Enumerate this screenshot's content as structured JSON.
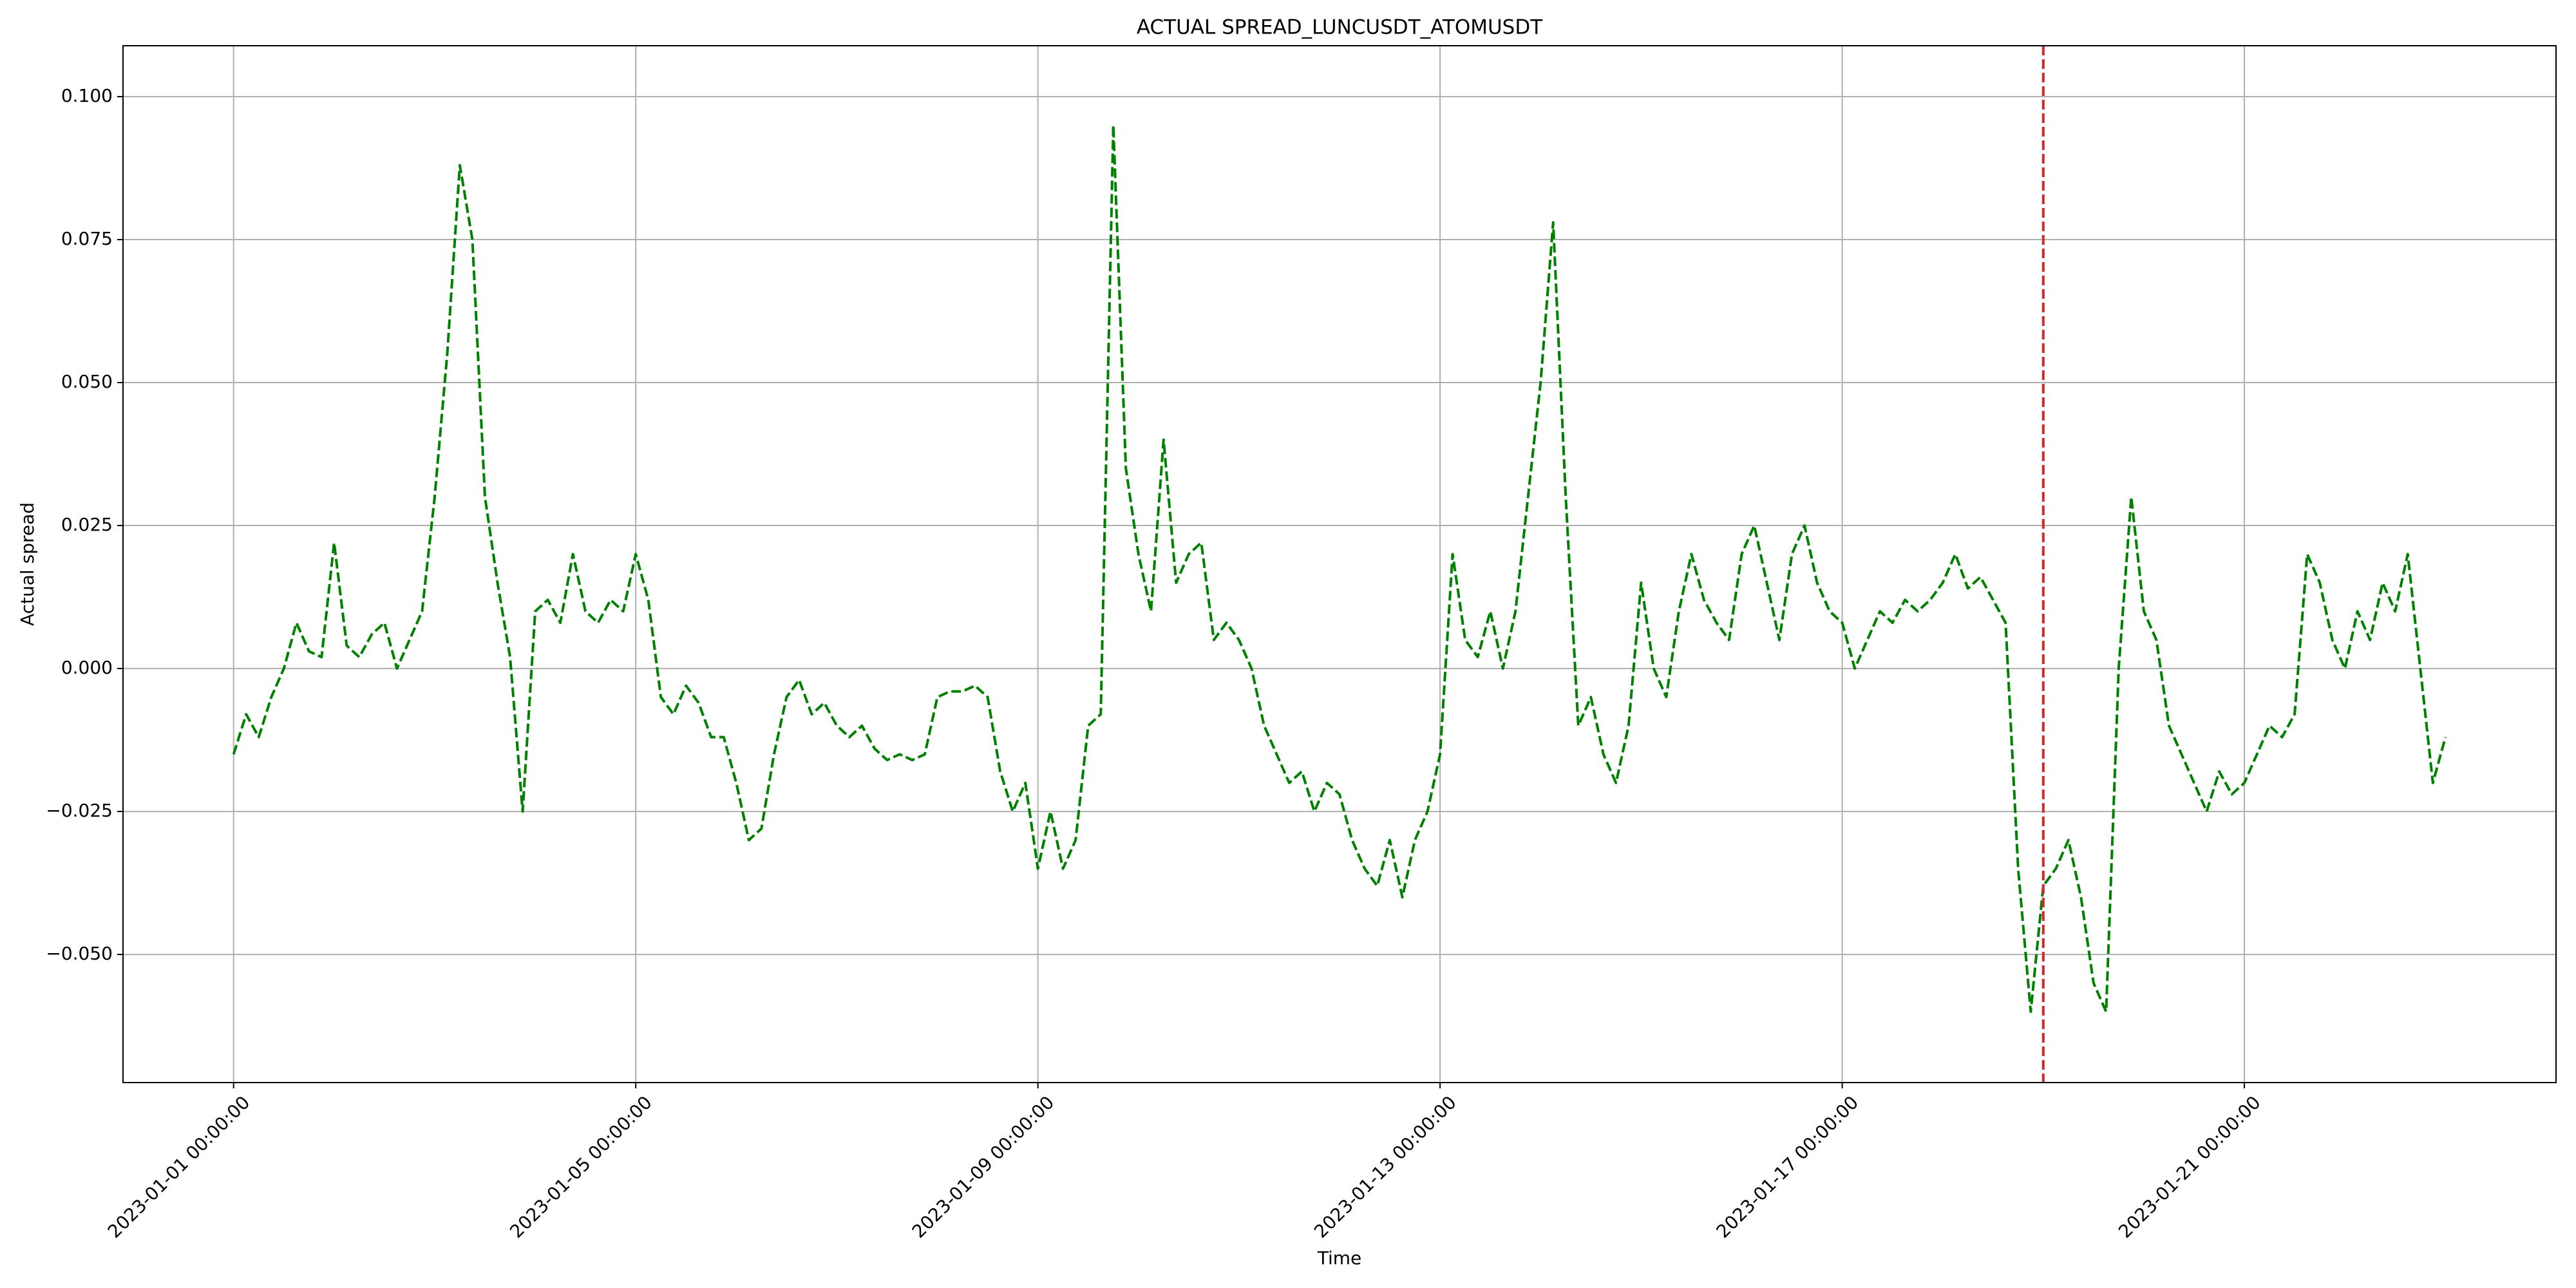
{
  "chart_data": {
    "type": "line",
    "title": "ACTUAL SPREAD_LUNCUSDT_ATOMUSDT",
    "x_label": "Time",
    "y_label": "Actual spread",
    "x": [
      "2023-01-01 00:00:00",
      "2023-01-01 03:00:00",
      "2023-01-01 06:00:00",
      "2023-01-01 09:00:00",
      "2023-01-01 12:00:00",
      "2023-01-01 15:00:00",
      "2023-01-01 18:00:00",
      "2023-01-01 21:00:00",
      "2023-01-02 00:00:00",
      "2023-01-02 03:00:00",
      "2023-01-02 06:00:00",
      "2023-01-02 09:00:00",
      "2023-01-02 12:00:00",
      "2023-01-02 15:00:00",
      "2023-01-02 18:00:00",
      "2023-01-02 21:00:00",
      "2023-01-03 00:00:00",
      "2023-01-03 03:00:00",
      "2023-01-03 06:00:00",
      "2023-01-03 09:00:00",
      "2023-01-03 12:00:00",
      "2023-01-03 15:00:00",
      "2023-01-03 18:00:00",
      "2023-01-03 21:00:00",
      "2023-01-04 00:00:00",
      "2023-01-04 03:00:00",
      "2023-01-04 06:00:00",
      "2023-01-04 09:00:00",
      "2023-01-04 12:00:00",
      "2023-01-04 15:00:00",
      "2023-01-04 18:00:00",
      "2023-01-04 21:00:00",
      "2023-01-05 00:00:00",
      "2023-01-05 03:00:00",
      "2023-01-05 06:00:00",
      "2023-01-05 09:00:00",
      "2023-01-05 12:00:00",
      "2023-01-05 15:00:00",
      "2023-01-05 18:00:00",
      "2023-01-05 21:00:00",
      "2023-01-06 00:00:00",
      "2023-01-06 03:00:00",
      "2023-01-06 06:00:00",
      "2023-01-06 09:00:00",
      "2023-01-06 12:00:00",
      "2023-01-06 15:00:00",
      "2023-01-06 18:00:00",
      "2023-01-06 21:00:00",
      "2023-01-07 00:00:00",
      "2023-01-07 03:00:00",
      "2023-01-07 06:00:00",
      "2023-01-07 09:00:00",
      "2023-01-07 12:00:00",
      "2023-01-07 15:00:00",
      "2023-01-07 18:00:00",
      "2023-01-07 21:00:00",
      "2023-01-08 00:00:00",
      "2023-01-08 03:00:00",
      "2023-01-08 06:00:00",
      "2023-01-08 09:00:00",
      "2023-01-08 12:00:00",
      "2023-01-08 15:00:00",
      "2023-01-08 18:00:00",
      "2023-01-08 21:00:00",
      "2023-01-09 00:00:00",
      "2023-01-09 03:00:00",
      "2023-01-09 06:00:00",
      "2023-01-09 09:00:00",
      "2023-01-09 12:00:00",
      "2023-01-09 15:00:00",
      "2023-01-09 18:00:00",
      "2023-01-09 21:00:00",
      "2023-01-10 00:00:00",
      "2023-01-10 03:00:00",
      "2023-01-10 06:00:00",
      "2023-01-10 09:00:00",
      "2023-01-10 12:00:00",
      "2023-01-10 15:00:00",
      "2023-01-10 18:00:00",
      "2023-01-10 21:00:00",
      "2023-01-11 00:00:00",
      "2023-01-11 03:00:00",
      "2023-01-11 06:00:00",
      "2023-01-11 09:00:00",
      "2023-01-11 12:00:00",
      "2023-01-11 15:00:00",
      "2023-01-11 18:00:00",
      "2023-01-11 21:00:00",
      "2023-01-12 00:00:00",
      "2023-01-12 03:00:00",
      "2023-01-12 06:00:00",
      "2023-01-12 09:00:00",
      "2023-01-12 12:00:00",
      "2023-01-12 15:00:00",
      "2023-01-12 18:00:00",
      "2023-01-12 21:00:00",
      "2023-01-13 00:00:00",
      "2023-01-13 03:00:00",
      "2023-01-13 06:00:00",
      "2023-01-13 09:00:00",
      "2023-01-13 12:00:00",
      "2023-01-13 15:00:00",
      "2023-01-13 18:00:00",
      "2023-01-13 21:00:00",
      "2023-01-14 00:00:00",
      "2023-01-14 03:00:00",
      "2023-01-14 06:00:00",
      "2023-01-14 09:00:00",
      "2023-01-14 12:00:00",
      "2023-01-14 15:00:00",
      "2023-01-14 18:00:00",
      "2023-01-14 21:00:00",
      "2023-01-15 00:00:00",
      "2023-01-15 03:00:00",
      "2023-01-15 06:00:00",
      "2023-01-15 09:00:00",
      "2023-01-15 12:00:00",
      "2023-01-15 15:00:00",
      "2023-01-15 18:00:00",
      "2023-01-15 21:00:00",
      "2023-01-16 00:00:00",
      "2023-01-16 03:00:00",
      "2023-01-16 06:00:00",
      "2023-01-16 09:00:00",
      "2023-01-16 12:00:00",
      "2023-01-16 15:00:00",
      "2023-01-16 18:00:00",
      "2023-01-16 21:00:00",
      "2023-01-17 00:00:00",
      "2023-01-17 03:00:00",
      "2023-01-17 06:00:00",
      "2023-01-17 09:00:00",
      "2023-01-17 12:00:00",
      "2023-01-17 15:00:00",
      "2023-01-17 18:00:00",
      "2023-01-17 21:00:00",
      "2023-01-18 00:00:00",
      "2023-01-18 03:00:00",
      "2023-01-18 06:00:00",
      "2023-01-18 09:00:00",
      "2023-01-18 12:00:00",
      "2023-01-18 15:00:00",
      "2023-01-18 18:00:00",
      "2023-01-18 21:00:00",
      "2023-01-19 00:00:00",
      "2023-01-19 03:00:00",
      "2023-01-19 06:00:00",
      "2023-01-19 09:00:00",
      "2023-01-19 12:00:00",
      "2023-01-19 15:00:00",
      "2023-01-19 18:00:00",
      "2023-01-19 21:00:00",
      "2023-01-20 00:00:00",
      "2023-01-20 03:00:00",
      "2023-01-20 06:00:00",
      "2023-01-20 09:00:00",
      "2023-01-20 12:00:00",
      "2023-01-20 15:00:00",
      "2023-01-20 18:00:00",
      "2023-01-20 21:00:00",
      "2023-01-21 00:00:00",
      "2023-01-21 03:00:00",
      "2023-01-21 06:00:00",
      "2023-01-21 09:00:00",
      "2023-01-21 12:00:00",
      "2023-01-21 15:00:00",
      "2023-01-21 18:00:00",
      "2023-01-21 21:00:00",
      "2023-01-22 00:00:00",
      "2023-01-22 03:00:00",
      "2023-01-22 06:00:00",
      "2023-01-22 09:00:00",
      "2023-01-22 12:00:00",
      "2023-01-22 15:00:00",
      "2023-01-22 18:00:00",
      "2023-01-22 21:00:00",
      "2023-01-23 00:00:00"
    ],
    "series": [
      {
        "color": "#008000",
        "values": [
          -0.015,
          -0.008,
          -0.012,
          -0.005,
          0.0,
          0.008,
          0.003,
          0.002,
          0.022,
          0.004,
          0.002,
          0.006,
          0.008,
          0.0,
          0.005,
          0.01,
          0.03,
          0.055,
          0.088,
          0.075,
          0.03,
          0.015,
          0.002,
          -0.025,
          0.01,
          0.012,
          0.008,
          0.02,
          0.01,
          0.008,
          0.012,
          0.01,
          0.02,
          0.012,
          -0.005,
          -0.008,
          -0.003,
          -0.006,
          -0.012,
          -0.012,
          -0.02,
          -0.03,
          -0.028,
          -0.015,
          -0.005,
          -0.002,
          -0.008,
          -0.006,
          -0.01,
          -0.012,
          -0.01,
          -0.014,
          -0.016,
          -0.015,
          -0.016,
          -0.015,
          -0.005,
          -0.004,
          -0.004,
          -0.003,
          -0.005,
          -0.018,
          -0.025,
          -0.02,
          -0.035,
          -0.025,
          -0.035,
          -0.03,
          -0.01,
          -0.008,
          0.095,
          0.035,
          0.02,
          0.01,
          0.04,
          0.015,
          0.02,
          0.022,
          0.005,
          0.008,
          0.005,
          0.0,
          -0.01,
          -0.015,
          -0.02,
          -0.018,
          -0.025,
          -0.02,
          -0.022,
          -0.03,
          -0.035,
          -0.038,
          -0.03,
          -0.04,
          -0.03,
          -0.025,
          -0.015,
          0.02,
          0.005,
          0.002,
          0.01,
          0.0,
          0.01,
          0.03,
          0.05,
          0.078,
          0.03,
          -0.01,
          -0.005,
          -0.015,
          -0.02,
          -0.01,
          0.015,
          0.0,
          -0.005,
          0.01,
          0.02,
          0.012,
          0.008,
          0.005,
          0.02,
          0.025,
          0.015,
          0.005,
          0.02,
          0.025,
          0.015,
          0.01,
          0.008,
          0.0,
          0.005,
          0.01,
          0.008,
          0.012,
          0.01,
          0.012,
          0.015,
          0.02,
          0.014,
          0.016,
          0.012,
          0.008,
          -0.035,
          -0.06,
          -0.038,
          -0.035,
          -0.03,
          -0.04,
          -0.055,
          -0.06,
          0.0,
          0.03,
          0.01,
          0.005,
          -0.01,
          -0.015,
          -0.02,
          -0.025,
          -0.018,
          -0.022,
          -0.02,
          -0.015,
          -0.01,
          -0.012,
          -0.008,
          0.02,
          0.015,
          0.005,
          0.0,
          0.01,
          0.005,
          0.015,
          0.01,
          0.02,
          0.0,
          -0.02,
          -0.012
        ]
      }
    ],
    "line_style": "dashed",
    "markers": [
      {
        "x": "2023-01-19 00:00:00",
        "color": "#d62728",
        "line_style": "dashed"
      }
    ],
    "xticks": [
      "2023-01-01 00:00:00",
      "2023-01-05 00:00:00",
      "2023-01-09 00:00:00",
      "2023-01-13 00:00:00",
      "2023-01-17 00:00:00",
      "2023-01-21 00:00:00"
    ],
    "ylim": [
      -0.0724,
      0.1089
    ],
    "yticks": [
      {
        "value": -0.05,
        "label": "−0.050"
      },
      {
        "value": -0.025,
        "label": "−0.025"
      },
      {
        "value": 0,
        "label": "0.000"
      },
      0.025,
      {
        "value": 0.05,
        "label": "0.050"
      },
      {
        "value": 0.075,
        "label": "0.075"
      },
      {
        "value": 0.1,
        "label": "0.100"
      }
    ],
    "grid": true
  }
}
